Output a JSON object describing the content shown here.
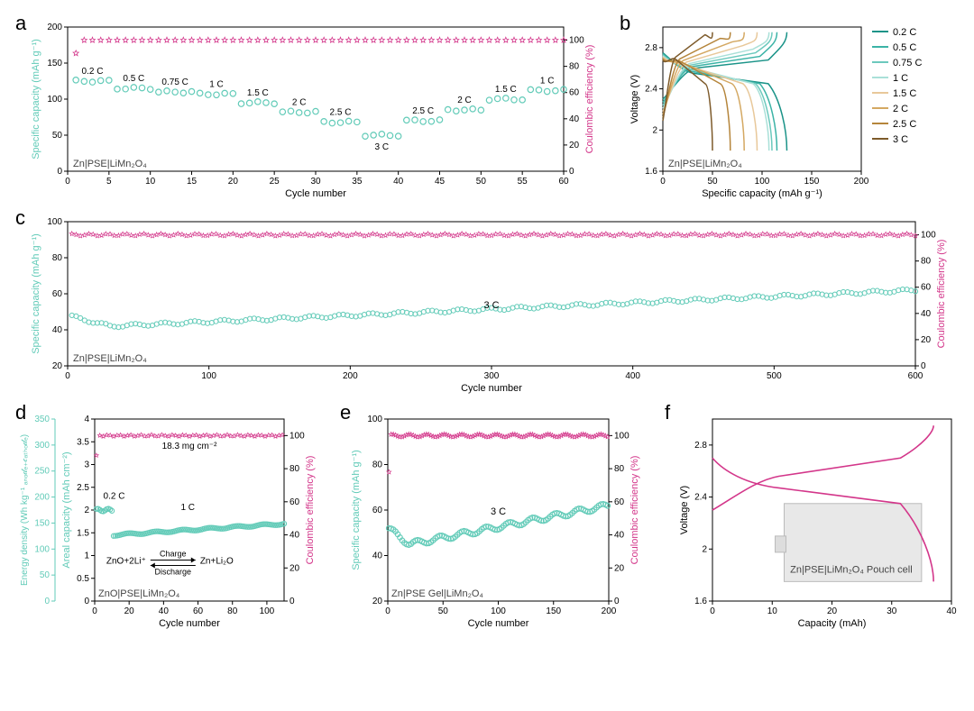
{
  "colors": {
    "capacity": "#62cbb8",
    "efficiency": "#d3368a",
    "black": "#000000",
    "grey": "#888888"
  },
  "panelA": {
    "label": "a",
    "sample": "Zn|PSE|LiMn₂O₄",
    "x_label": "Cycle number",
    "y1_label": "Specific capacity (mAh g⁻¹)",
    "y2_label": "Coulombic efficiency (%)",
    "x_range": [
      0,
      60
    ],
    "x_ticks": [
      0,
      5,
      10,
      15,
      20,
      25,
      30,
      35,
      40,
      45,
      50,
      55,
      60
    ],
    "y1_range": [
      0,
      200
    ],
    "y1_ticks": [
      0,
      50,
      100,
      150,
      200
    ],
    "y2_range": [
      0,
      110
    ],
    "y2_ticks": [
      0,
      20,
      40,
      60,
      80,
      100
    ],
    "segments": [
      {
        "label": "0.2 C",
        "start": 1,
        "end": 5,
        "capacity": 125
      },
      {
        "label": "0.5 C",
        "start": 6,
        "end": 10,
        "capacity": 115
      },
      {
        "label": "0.75 C",
        "start": 11,
        "end": 15,
        "capacity": 110
      },
      {
        "label": "1 C",
        "start": 16,
        "end": 20,
        "capacity": 107
      },
      {
        "label": "1.5 C",
        "start": 21,
        "end": 25,
        "capacity": 95
      },
      {
        "label": "2 C",
        "start": 26,
        "end": 30,
        "capacity": 82
      },
      {
        "label": "2.5 C",
        "start": 31,
        "end": 35,
        "capacity": 68
      },
      {
        "label": "3 C",
        "start": 36,
        "end": 40,
        "capacity": 50
      },
      {
        "label": "2.5 C",
        "start": 41,
        "end": 45,
        "capacity": 70
      },
      {
        "label": "2 C",
        "start": 46,
        "end": 50,
        "capacity": 85
      },
      {
        "label": "1.5 C",
        "start": 51,
        "end": 55,
        "capacity": 100
      },
      {
        "label": "1 C",
        "start": 56,
        "end": 60,
        "capacity": 112
      }
    ],
    "efficiencyLevel": 100,
    "effStart": 90
  },
  "panelB": {
    "label": "b",
    "sample": "Zn|PSE|LiMn₂O₄",
    "x_label": "Specific capacity (mAh g⁻¹)",
    "y_label": "Voltage (V)",
    "x_range": [
      0,
      200
    ],
    "x_ticks": [
      0,
      50,
      100,
      150,
      200
    ],
    "y_range": [
      1.6,
      3.0
    ],
    "y_ticks": [
      1.6,
      2.0,
      2.4,
      2.8
    ],
    "curves": [
      {
        "label": "0.2 C",
        "color": "#1a9388",
        "cap": 125
      },
      {
        "label": "0.5 C",
        "color": "#3bb3a6",
        "cap": 115
      },
      {
        "label": "0.75 C",
        "color": "#6cc9bd",
        "cap": 110
      },
      {
        "label": "1 C",
        "color": "#a9e0d8",
        "cap": 107
      },
      {
        "label": "1.5 C",
        "color": "#e8c89a",
        "cap": 95
      },
      {
        "label": "2 C",
        "color": "#d4a862",
        "cap": 82
      },
      {
        "label": "2.5 C",
        "color": "#b5853b",
        "cap": 68
      },
      {
        "label": "3 C",
        "color": "#7d5a2a",
        "cap": 50
      }
    ]
  },
  "panelC": {
    "label": "c",
    "sample": "Zn|PSE|LiMn₂O₄",
    "annotation": "3 C",
    "x_label": "Cycle number",
    "y1_label": "Specific capacity (mAh g⁻¹)",
    "y2_label": "Coulombic efficiency (%)",
    "x_range": [
      0,
      600
    ],
    "x_ticks": [
      0,
      100,
      200,
      300,
      400,
      500,
      600
    ],
    "y1_range": [
      20,
      100
    ],
    "y1_ticks": [
      20,
      40,
      60,
      80,
      100
    ],
    "y2_range": [
      0,
      110
    ],
    "y2_ticks": [
      0,
      20,
      40,
      60,
      80,
      100
    ],
    "cap_start": 48,
    "cap_mid": 42,
    "cap_end": 62,
    "eff": 100
  },
  "panelD": {
    "label": "d",
    "sample": "ZnO|PSE|LiMn₂O₄",
    "x_label": "Cycle number",
    "y1_label": "Energy density (Wh kg⁻¹ ₐₙₒ𝒹ₑ₊𝒸ₐₜₕₒ𝒹ₑ)",
    "y1b_label": "Areal capacity (mAh cm⁻²)",
    "y2_label": "Coulombic efficiency (%)",
    "x_range": [
      0,
      110
    ],
    "x_ticks": [
      0,
      20,
      40,
      60,
      80,
      100
    ],
    "y1_range": [
      0,
      350
    ],
    "y1_ticks": [
      0,
      50,
      100,
      150,
      200,
      250,
      300,
      350
    ],
    "y1b_range": [
      0,
      4.0
    ],
    "y1b_ticks": [
      0,
      0.5,
      1.0,
      1.5,
      2.0,
      2.5,
      3.0,
      3.5,
      4.0
    ],
    "y2_range": [
      0,
      110
    ],
    "y2_ticks": [
      0,
      20,
      40,
      60,
      80,
      100
    ],
    "loading": "18.3 mg cm⁻²",
    "seg1": {
      "label": "0.2 C",
      "start": 1,
      "end": 10,
      "areal": 2.0
    },
    "seg2": {
      "label": "1 C",
      "start": 11,
      "end": 110,
      "arealStart": 1.45,
      "arealEnd": 1.7
    },
    "eff": 100,
    "reaction_top": "Charge",
    "reaction_bot": "Discharge",
    "reaction_lhs": "ZnO+2Li⁺",
    "reaction_rhs": "Zn+Li₂O"
  },
  "panelE": {
    "label": "e",
    "sample": "Zn|PSE Gel|LiMn₂O₄",
    "annotation": "3 C",
    "x_label": "Cycle number",
    "y1_label": "Specific capacity (mAh g⁻¹)",
    "y2_label": "Coulombic efficiency (%)",
    "x_range": [
      0,
      200
    ],
    "x_ticks": [
      0,
      50,
      100,
      150,
      200
    ],
    "y1_range": [
      20,
      100
    ],
    "y1_ticks": [
      20,
      40,
      60,
      80,
      100
    ],
    "y2_range": [
      0,
      110
    ],
    "y2_ticks": [
      0,
      20,
      40,
      60,
      80,
      100
    ],
    "cap_start": 52,
    "cap_mid": 45,
    "cap_end": 62,
    "eff": 100,
    "effStart": 78
  },
  "panelF": {
    "label": "f",
    "sample": "Zn|PSE|LiMn₂O₄ Pouch cell",
    "x_label": "Capacity (mAh)",
    "y_label": "Voltage (V)",
    "x_range": [
      0,
      40
    ],
    "x_ticks": [
      0,
      10,
      20,
      30,
      40
    ],
    "y_range": [
      1.6,
      3.0
    ],
    "y_ticks": [
      1.6,
      2.0,
      2.4,
      2.8
    ],
    "cap": 37,
    "color": "#d3368a"
  }
}
